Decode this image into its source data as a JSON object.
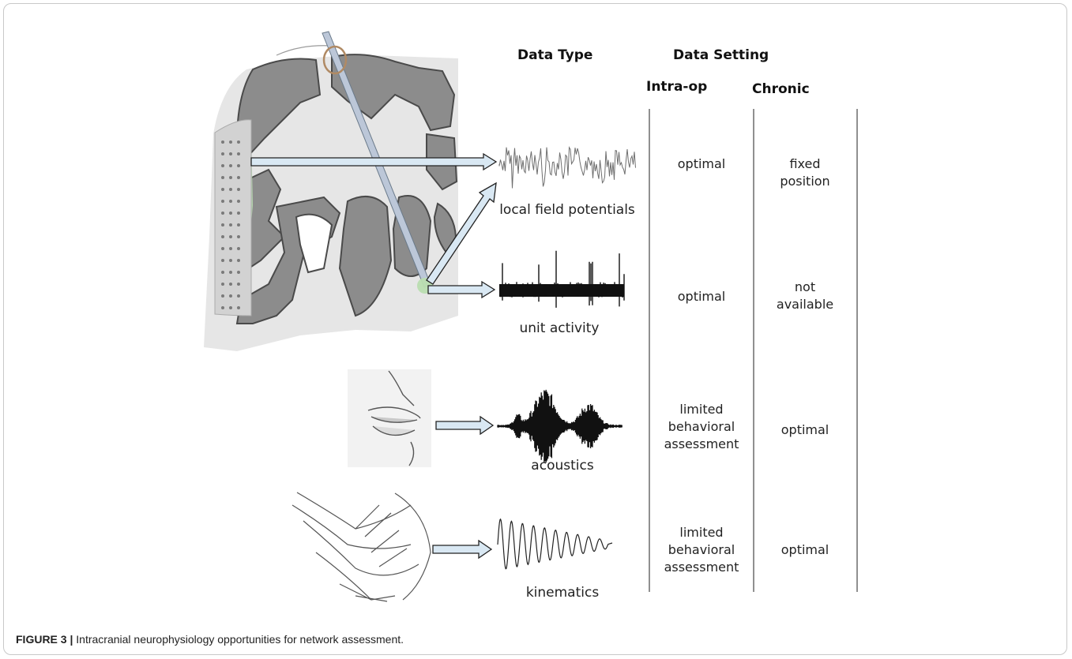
{
  "headers": {
    "data_type": "Data Type",
    "data_setting": "Data Setting",
    "intra_op": "Intra-op",
    "chronic": "Chronic"
  },
  "rows": [
    {
      "label": "local field potentials",
      "intra_op": "optimal",
      "chronic": "fixed\nposition"
    },
    {
      "label": "unit activity",
      "intra_op": "optimal",
      "chronic": "not\navailable"
    },
    {
      "label": "acoustics",
      "intra_op": "limited\nbehavioral\nassessment",
      "chronic": "optimal"
    },
    {
      "label": "kinematics",
      "intra_op": "limited\nbehavioral\nassessment",
      "chronic": "optimal"
    }
  ],
  "caption": {
    "label": "FIGURE 3 |",
    "text": "Intracranial neurophysiology opportunities for network assessment."
  },
  "colors": {
    "brain_gray": "#8c8c8c",
    "brain_white": "#e6e6e6",
    "highlight_green": "#b9ddb0",
    "arrow_fill": "#d9e8f3",
    "probe_fill": "#bcc7d8"
  }
}
